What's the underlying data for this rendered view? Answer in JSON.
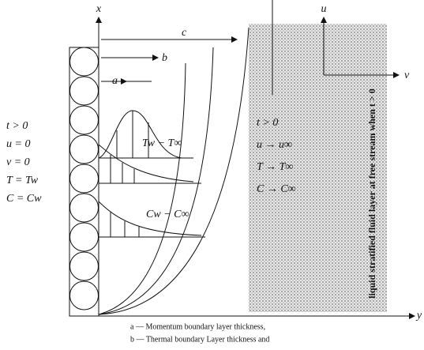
{
  "axes": {
    "x": "x",
    "y": "y",
    "u": "u",
    "v": "v"
  },
  "thickness_labels": {
    "c": "c",
    "b": "b",
    "a": "a"
  },
  "wall_conditions": [
    "t > 0",
    "u = 0",
    "v = 0",
    "T = Tw",
    "C = Cw"
  ],
  "profile_labels": {
    "temperature": "Tw − T∞",
    "concentration": "Cw − C∞"
  },
  "free_stream_conditions": [
    "t > 0",
    "u → u∞",
    "T → T∞",
    "C → C∞"
  ],
  "free_stream_note": "liquid stratified fluid layer at free stream when t > 0",
  "caption": [
    "a — Momentum boundary layer thickness,",
    "b — Thermal boundary Layer thickness and"
  ]
}
